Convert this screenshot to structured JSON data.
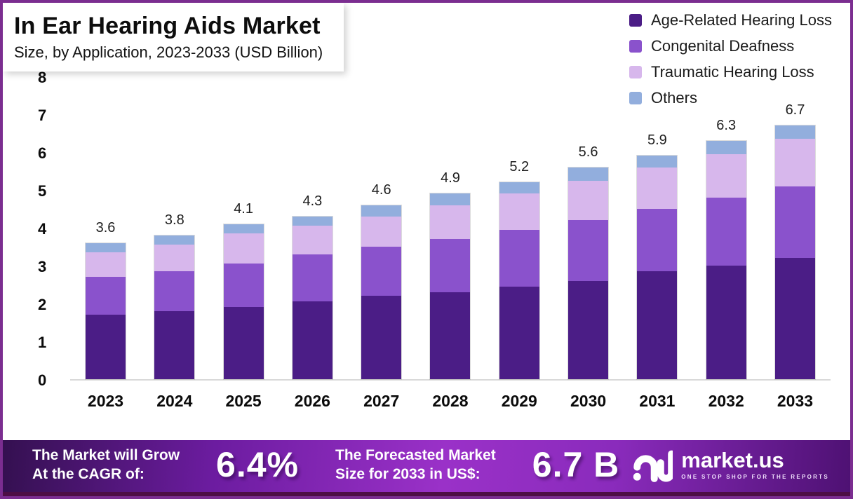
{
  "header": {
    "title": "In Ear Hearing Aids Market",
    "subtitle": "Size, by Application, 2023-2033 (USD Billion)"
  },
  "chart_data": {
    "type": "bar",
    "stacked": true,
    "title": "In Ear Hearing Aids Market Size, by Application, 2023-2033 (USD Billion)",
    "categories": [
      "2023",
      "2024",
      "2025",
      "2026",
      "2027",
      "2028",
      "2029",
      "2030",
      "2031",
      "2032",
      "2033"
    ],
    "series": [
      {
        "name": "Age-Related Hearing Loss",
        "color": "#4b1d86",
        "values": [
          1.7,
          1.8,
          1.9,
          2.05,
          2.2,
          2.3,
          2.45,
          2.6,
          2.85,
          3.0,
          3.2
        ]
      },
      {
        "name": "Congenital Deafness",
        "color": "#8a52cc",
        "values": [
          1.0,
          1.05,
          1.15,
          1.25,
          1.3,
          1.4,
          1.5,
          1.6,
          1.65,
          1.8,
          1.9
        ]
      },
      {
        "name": "Traumatic Hearing Loss",
        "color": "#d7b7ec",
        "values": [
          0.65,
          0.7,
          0.8,
          0.75,
          0.8,
          0.9,
          0.95,
          1.05,
          1.1,
          1.15,
          1.25
        ]
      },
      {
        "name": "Others",
        "color": "#92aedd",
        "values": [
          0.25,
          0.25,
          0.25,
          0.25,
          0.3,
          0.3,
          0.3,
          0.35,
          0.3,
          0.35,
          0.35
        ]
      }
    ],
    "totals": [
      3.6,
      3.8,
      4.1,
      4.3,
      4.6,
      4.9,
      5.2,
      5.6,
      5.9,
      6.3,
      6.7
    ],
    "xlabel": "",
    "ylabel": "",
    "ylim": [
      0,
      8
    ],
    "yticks": [
      8,
      7,
      6,
      5,
      4,
      3,
      2,
      1,
      0
    ],
    "grid": false,
    "legend_position": "top-right"
  },
  "footer": {
    "cagr_lines": [
      "The Market will Grow",
      "At the CAGR of:"
    ],
    "cagr_value": "6.4%",
    "forecast_lines": [
      "The Forecasted Market",
      "Size for 2033 in US$:"
    ],
    "forecast_value": "6.7 B",
    "brand_name": "market.us",
    "brand_tagline": "ONE STOP SHOP FOR THE REPORTS"
  },
  "theme": {
    "frame_border": "#7b2d90",
    "banner_mid": "#9a31c8",
    "banner_dark": "#341050"
  }
}
